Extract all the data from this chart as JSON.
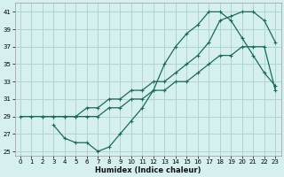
{
  "xlabel": "Humidex (Indice chaleur)",
  "bg_color": "#d6f0f0",
  "grid_color": "#b0d4d4",
  "line_color": "#1a6b5a",
  "xlim": [
    -0.5,
    23.5
  ],
  "ylim": [
    24.5,
    42
  ],
  "xticks": [
    0,
    1,
    2,
    3,
    4,
    5,
    6,
    7,
    8,
    9,
    10,
    11,
    12,
    13,
    14,
    15,
    16,
    17,
    18,
    19,
    20,
    21,
    22,
    23
  ],
  "yticks": [
    25,
    27,
    29,
    31,
    33,
    35,
    37,
    39,
    41
  ],
  "line1_x": [
    0,
    1,
    2,
    3,
    4,
    5,
    6,
    7,
    8,
    9,
    10,
    11,
    12,
    13,
    14,
    15,
    16,
    17,
    18,
    19,
    20,
    21,
    22,
    23
  ],
  "line1_y": [
    29,
    29,
    29,
    29,
    29,
    29,
    29,
    29,
    30,
    30,
    31,
    31,
    32,
    32,
    33,
    33,
    34,
    35,
    36,
    36,
    37,
    37,
    37,
    32
  ],
  "line2_x": [
    3,
    4,
    5,
    6,
    7,
    8,
    9,
    10,
    11,
    12,
    13,
    14,
    15,
    16,
    17,
    18,
    19,
    20,
    21,
    22,
    23
  ],
  "line2_y": [
    28,
    26.5,
    26,
    26,
    25,
    25.5,
    27,
    28.5,
    30,
    32,
    35,
    37,
    38.5,
    39.5,
    41,
    41,
    40,
    38,
    36,
    34,
    32.5
  ],
  "line3_x": [
    2,
    3,
    4,
    5,
    6,
    7,
    8,
    9,
    10,
    11,
    12,
    13,
    14,
    15,
    16,
    17,
    18,
    19,
    20,
    21,
    22,
    23
  ],
  "line3_y": [
    29,
    29,
    29,
    29,
    30,
    30,
    31,
    31,
    32,
    32,
    33,
    33,
    34,
    35,
    36,
    37.5,
    40,
    40.5,
    41,
    41,
    40,
    37.5
  ]
}
